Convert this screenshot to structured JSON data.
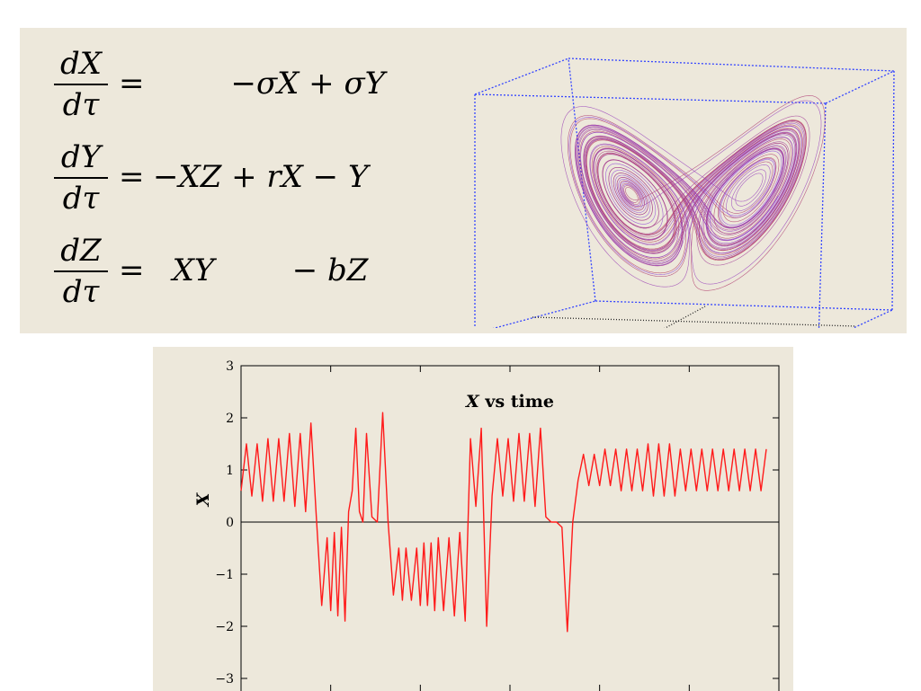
{
  "equations": [
    {
      "num": "dX",
      "den": "dτ",
      "sign": "=",
      "rhs": "        −σX + σY"
    },
    {
      "num": "dY",
      "den": "dτ",
      "sign": "=",
      "rhs": "−XZ + rX − Y"
    },
    {
      "num": "dZ",
      "den": "dτ",
      "sign": "=",
      "rhs": "  XY        − bZ"
    }
  ],
  "attractor": {
    "box_color": "#3344ff",
    "floor_line_color": "#222222",
    "trajectory_colors": [
      "#8a3fe0",
      "#b7364f"
    ]
  },
  "chart_data": {
    "type": "line",
    "title_var": "X",
    "title_rest": " vs time",
    "ylabel": "X",
    "ylim": [
      -3,
      3
    ],
    "yticks": [
      3,
      2,
      1,
      0,
      -1,
      -2,
      -3
    ],
    "ytick_labels": [
      "3",
      "2",
      "1",
      "0",
      "−1",
      "−2",
      "−3"
    ],
    "xlim": [
      0,
      30
    ],
    "grid": false,
    "series": [
      {
        "color": "#ff1a1a",
        "x": [
          0,
          0.3,
          0.6,
          0.9,
          1.2,
          1.5,
          1.8,
          2.1,
          2.4,
          2.7,
          3.0,
          3.3,
          3.6,
          3.9,
          4.2,
          4.5,
          4.8,
          5.0,
          5.2,
          5.4,
          5.6,
          5.8,
          6.0,
          6.2,
          6.4,
          6.6,
          6.8,
          7.0,
          7.3,
          7.6,
          7.9,
          8.2,
          8.5,
          8.8,
          9.0,
          9.2,
          9.5,
          9.8,
          10.0,
          10.2,
          10.4,
          10.6,
          10.8,
          11.0,
          11.3,
          11.6,
          11.9,
          12.2,
          12.5,
          12.8,
          13.1,
          13.4,
          13.7,
          14.0,
          14.3,
          14.6,
          14.9,
          15.2,
          15.5,
          15.8,
          16.1,
          16.4,
          16.7,
          17.0,
          17.3,
          17.6,
          17.9,
          18.2,
          18.5,
          18.8,
          19.1,
          19.4,
          19.7,
          20.0,
          20.3,
          20.6,
          20.9,
          21.2,
          21.5,
          21.8,
          22.1,
          22.4,
          22.7,
          23.0,
          23.3,
          23.6,
          23.9,
          24.2,
          24.5,
          24.8,
          25.1,
          25.4,
          25.7,
          26.0,
          26.3,
          26.6,
          26.9,
          27.2,
          27.5,
          27.8,
          28.1,
          28.4,
          28.7,
          29.0,
          29.3
        ],
        "y": [
          0.6,
          1.5,
          0.5,
          1.5,
          0.4,
          1.6,
          0.4,
          1.6,
          0.4,
          1.7,
          0.3,
          1.7,
          0.2,
          1.9,
          0.1,
          -1.6,
          -0.3,
          -1.7,
          -0.2,
          -1.8,
          -0.1,
          -1.9,
          0.2,
          0.6,
          1.8,
          0.2,
          0.0,
          1.7,
          0.1,
          0.0,
          2.1,
          0.0,
          -1.4,
          -0.5,
          -1.5,
          -0.5,
          -1.5,
          -0.5,
          -1.6,
          -0.4,
          -1.6,
          -0.4,
          -1.7,
          -0.3,
          -1.7,
          -0.3,
          -1.8,
          -0.2,
          -1.9,
          1.6,
          0.3,
          1.8,
          -2.0,
          0.5,
          1.6,
          0.5,
          1.6,
          0.4,
          1.7,
          0.4,
          1.7,
          0.3,
          1.8,
          0.1,
          0.0,
          0.0,
          -0.1,
          -2.1,
          0.0,
          0.8,
          1.3,
          0.7,
          1.3,
          0.7,
          1.4,
          0.7,
          1.4,
          0.6,
          1.4,
          0.6,
          1.4,
          0.6,
          1.5,
          0.5,
          1.5,
          0.5,
          1.5,
          0.5,
          1.4,
          0.6,
          1.4,
          0.6,
          1.4,
          0.6,
          1.4,
          0.6,
          1.4,
          0.6,
          1.4,
          0.6,
          1.4,
          0.6,
          1.4,
          0.6,
          1.4
        ]
      }
    ]
  }
}
